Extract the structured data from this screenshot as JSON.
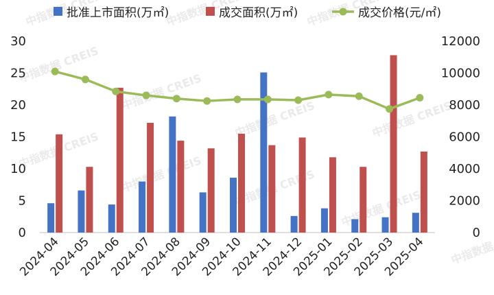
{
  "chart_data": {
    "type": "bar",
    "categories": [
      "2024-04",
      "2024-05",
      "2024-06",
      "2024-07",
      "2024-08",
      "2024-09",
      "2024-10",
      "2024-11",
      "2024-12",
      "2025-01",
      "2025-02",
      "2025-03",
      "2025-04"
    ],
    "series": [
      {
        "name": "批准上市面积(万㎡)",
        "type": "bar",
        "axis": "left",
        "color": "#4472C4",
        "values": [
          4.6,
          6.6,
          4.4,
          8.0,
          18.2,
          6.3,
          8.6,
          25.1,
          2.6,
          3.8,
          2.1,
          2.4,
          3.1
        ]
      },
      {
        "name": "成交面积(万㎡)",
        "type": "bar",
        "axis": "left",
        "color": "#C0504D",
        "values": [
          15.4,
          10.3,
          22.7,
          17.2,
          14.4,
          13.2,
          15.5,
          13.7,
          14.9,
          11.8,
          10.3,
          27.8,
          12.7
        ]
      },
      {
        "name": "成交价格(元/㎡)",
        "type": "line",
        "axis": "right",
        "color": "#9BBB59",
        "values": [
          10100,
          9600,
          8850,
          8600,
          8400,
          8250,
          8350,
          8350,
          8300,
          8650,
          8550,
          7750,
          8450
        ]
      }
    ],
    "left_axis": {
      "ylim": [
        0,
        30
      ],
      "ticks": [
        0,
        5,
        10,
        15,
        20,
        25,
        30
      ]
    },
    "right_axis": {
      "ylim": [
        0,
        12000
      ],
      "ticks": [
        0,
        2000,
        4000,
        6000,
        8000,
        10000,
        12000
      ]
    },
    "legend_position": "top",
    "grid": false,
    "watermark": "中指数据 CREIS"
  }
}
